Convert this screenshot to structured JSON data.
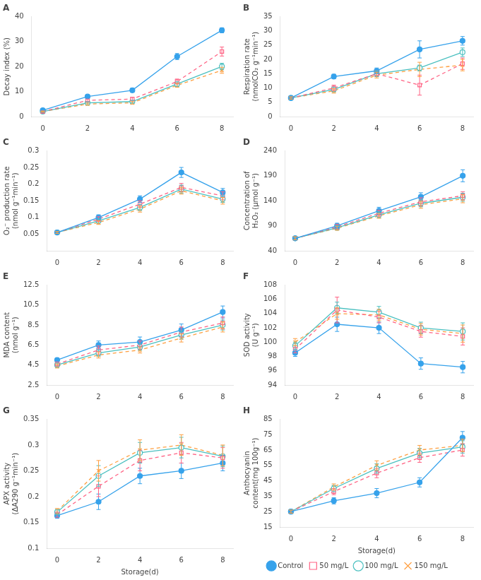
{
  "chart_data": [
    {
      "type": "line",
      "title": "A",
      "ylabel": "Decay index (%)",
      "x": [
        0,
        2,
        4,
        6,
        8
      ],
      "xlim": [
        -0.5,
        8.5
      ],
      "xticks": [
        0,
        2,
        4,
        6,
        8
      ],
      "ylim": [
        0,
        40
      ],
      "yticks": [
        0,
        10,
        20,
        30,
        40
      ],
      "grid": false,
      "series": [
        {
          "name": "Control",
          "values": [
            2.5,
            8.0,
            10.5,
            24.0,
            34.5
          ],
          "errors": [
            0.3,
            0.6,
            0.8,
            1.2,
            1.0
          ],
          "marker": "filled_circle",
          "line_style": "solid"
        },
        {
          "name": "50 mg/L",
          "values": [
            2.0,
            6.5,
            7.0,
            14.0,
            26.0
          ],
          "errors": [
            0.3,
            0.5,
            0.7,
            1.0,
            1.8
          ],
          "marker": "open_square",
          "line_style": "dashed"
        },
        {
          "name": "100 mg/L",
          "values": [
            2.0,
            5.5,
            6.0,
            13.0,
            20.0
          ],
          "errors": [
            0.2,
            0.4,
            0.5,
            0.9,
            1.3
          ],
          "marker": "open_circle",
          "line_style": "solid"
        },
        {
          "name": "150 mg/L",
          "values": [
            2.0,
            5.0,
            5.5,
            12.5,
            18.5
          ],
          "errors": [
            0.2,
            0.4,
            0.5,
            0.8,
            1.2
          ],
          "marker": "cross",
          "line_style": "dashed"
        }
      ]
    },
    {
      "type": "line",
      "title": "B",
      "ylabel": "Respiration rate\n(nmolCO₂ g⁻¹min⁻¹)",
      "x": [
        0,
        2,
        4,
        6,
        8
      ],
      "xlim": [
        -0.5,
        8.5
      ],
      "xticks": [
        0,
        2,
        4,
        6,
        8
      ],
      "ylim": [
        0,
        35
      ],
      "yticks": [
        0,
        5,
        10,
        15,
        20,
        25,
        30,
        35
      ],
      "grid": false,
      "series": [
        {
          "name": "Control",
          "values": [
            6.5,
            14.0,
            16.0,
            23.5,
            26.5
          ],
          "errors": [
            0.4,
            0.8,
            1.0,
            3.0,
            1.5
          ],
          "marker": "filled_circle",
          "line_style": "solid"
        },
        {
          "name": "50 mg/L",
          "values": [
            6.5,
            10.0,
            15.0,
            11.0,
            18.5
          ],
          "errors": [
            0.4,
            1.0,
            1.0,
            3.5,
            2.0
          ],
          "marker": "open_square",
          "line_style": "dashed"
        },
        {
          "name": "100 mg/L",
          "values": [
            6.5,
            9.5,
            15.0,
            17.0,
            22.5
          ],
          "errors": [
            0.4,
            0.8,
            1.0,
            1.0,
            1.5
          ],
          "marker": "open_circle",
          "line_style": "solid"
        },
        {
          "name": "150 mg/L",
          "values": [
            6.5,
            9.0,
            14.5,
            16.5,
            18.0
          ],
          "errors": [
            0.4,
            0.8,
            1.0,
            2.5,
            2.0
          ],
          "marker": "cross",
          "line_style": "dashed"
        }
      ]
    },
    {
      "type": "line",
      "title": "C",
      "ylabel": "O₂⁻ production rate\n(nmol g⁻¹min⁻¹)",
      "x": [
        0,
        2,
        4,
        6,
        8
      ],
      "xlim": [
        -0.5,
        8.5
      ],
      "xticks": [
        0,
        2,
        4,
        6,
        8
      ],
      "ylim": [
        0,
        0.3
      ],
      "yticks": [
        0.05,
        0.1,
        0.15,
        0.2,
        0.25,
        0.3
      ],
      "grid": false,
      "series": [
        {
          "name": "Control",
          "values": [
            0.055,
            0.1,
            0.155,
            0.235,
            0.175
          ],
          "errors": [
            0.003,
            0.008,
            0.01,
            0.015,
            0.012
          ],
          "marker": "filled_circle",
          "line_style": "solid"
        },
        {
          "name": "50 mg/L",
          "values": [
            0.055,
            0.095,
            0.14,
            0.19,
            0.165
          ],
          "errors": [
            0.003,
            0.007,
            0.01,
            0.012,
            0.012
          ],
          "marker": "open_square",
          "line_style": "dashed"
        },
        {
          "name": "100 mg/L",
          "values": [
            0.055,
            0.09,
            0.13,
            0.185,
            0.155
          ],
          "errors": [
            0.003,
            0.006,
            0.009,
            0.012,
            0.01
          ],
          "marker": "open_circle",
          "line_style": "solid"
        },
        {
          "name": "150 mg/L",
          "values": [
            0.055,
            0.085,
            0.125,
            0.18,
            0.15
          ],
          "errors": [
            0.003,
            0.006,
            0.009,
            0.01,
            0.01
          ],
          "marker": "cross",
          "line_style": "dashed"
        }
      ]
    },
    {
      "type": "line",
      "title": "D",
      "ylabel": "Concentration of\nH₂O₂ (μmol g⁻¹)",
      "x": [
        0,
        2,
        4,
        6,
        8
      ],
      "xlim": [
        -0.5,
        8.5
      ],
      "xticks": [
        0,
        2,
        4,
        6,
        8
      ],
      "ylim": [
        40,
        240
      ],
      "yticks": [
        40,
        90,
        140,
        190,
        240
      ],
      "grid": false,
      "series": [
        {
          "name": "Control",
          "values": [
            65,
            90,
            120,
            148,
            190
          ],
          "errors": [
            3,
            5,
            7,
            8,
            12
          ],
          "marker": "filled_circle",
          "line_style": "solid"
        },
        {
          "name": "50 mg/L",
          "values": [
            65,
            88,
            115,
            138,
            150
          ],
          "errors": [
            3,
            5,
            6,
            8,
            8
          ],
          "marker": "open_square",
          "line_style": "dashed"
        },
        {
          "name": "100 mg/L",
          "values": [
            65,
            86,
            112,
            135,
            147
          ],
          "errors": [
            3,
            4,
            6,
            7,
            8
          ],
          "marker": "open_circle",
          "line_style": "solid"
        },
        {
          "name": "150 mg/L",
          "values": [
            65,
            85,
            110,
            132,
            144
          ],
          "errors": [
            3,
            4,
            5,
            7,
            8
          ],
          "marker": "cross",
          "line_style": "dashed"
        }
      ]
    },
    {
      "type": "line",
      "title": "E",
      "ylabel": "MDA content\n(nmol g⁻¹)",
      "x": [
        0,
        2,
        4,
        6,
        8
      ],
      "xlim": [
        -0.5,
        8.5
      ],
      "xticks": [
        0,
        2,
        4,
        6,
        8
      ],
      "ylim": [
        2.5,
        12.5
      ],
      "yticks": [
        2.5,
        4.5,
        6.5,
        8.5,
        10.5,
        12.5
      ],
      "grid": false,
      "series": [
        {
          "name": "Control",
          "values": [
            5.0,
            6.5,
            6.8,
            8.0,
            9.8
          ],
          "errors": [
            0.2,
            0.4,
            0.5,
            0.6,
            0.6
          ],
          "marker": "filled_circle",
          "line_style": "solid"
        },
        {
          "name": "50 mg/L",
          "values": [
            4.6,
            6.0,
            6.5,
            7.8,
            8.7
          ],
          "errors": [
            0.2,
            0.4,
            0.4,
            0.5,
            0.6
          ],
          "marker": "open_square",
          "line_style": "dashed"
        },
        {
          "name": "100 mg/L",
          "values": [
            4.5,
            5.7,
            6.3,
            7.5,
            8.5
          ],
          "errors": [
            0.2,
            0.3,
            0.3,
            0.4,
            0.5
          ],
          "marker": "open_circle",
          "line_style": "solid"
        },
        {
          "name": "150 mg/L",
          "values": [
            4.4,
            5.5,
            6.0,
            7.2,
            8.3
          ],
          "errors": [
            0.2,
            0.3,
            0.3,
            0.4,
            0.5
          ],
          "marker": "cross",
          "line_style": "dashed"
        }
      ]
    },
    {
      "type": "line",
      "title": "F",
      "ylabel": "SOD activity\n(U g⁻¹)",
      "x": [
        0,
        2,
        4,
        6,
        8
      ],
      "xlim": [
        -0.5,
        8.5
      ],
      "xticks": [
        0,
        2,
        4,
        6,
        8
      ],
      "ylim": [
        94,
        108
      ],
      "yticks": [
        94,
        96,
        98,
        100,
        102,
        104,
        106,
        108
      ],
      "grid": false,
      "series": [
        {
          "name": "Control",
          "values": [
            98.5,
            102.5,
            102.0,
            97.0,
            96.5
          ],
          "errors": [
            0.5,
            1.0,
            0.8,
            0.8,
            0.8
          ],
          "marker": "filled_circle",
          "line_style": "solid"
        },
        {
          "name": "50 mg/L",
          "values": [
            99.0,
            104.5,
            103.5,
            101.5,
            100.8
          ],
          "errors": [
            0.5,
            1.8,
            0.8,
            0.8,
            1.2
          ],
          "marker": "open_square",
          "line_style": "dashed"
        },
        {
          "name": "100 mg/L",
          "values": [
            99.5,
            104.8,
            104.2,
            102.0,
            101.5
          ],
          "errors": [
            0.5,
            0.8,
            0.8,
            0.8,
            1.2
          ],
          "marker": "open_circle",
          "line_style": "solid"
        },
        {
          "name": "150 mg/L",
          "values": [
            100.0,
            104.0,
            103.8,
            101.8,
            101.2
          ],
          "errors": [
            0.5,
            0.8,
            0.8,
            0.8,
            1.2
          ],
          "marker": "cross",
          "line_style": "dashed"
        }
      ]
    },
    {
      "type": "line",
      "title": "G",
      "ylabel": "APX activity\n(ΔA290 g⁻¹min⁻¹)",
      "xlabel": "Storage(d)",
      "x": [
        0,
        2,
        4,
        6,
        8
      ],
      "xlim": [
        -0.5,
        8.5
      ],
      "xticks": [
        0,
        2,
        4,
        6,
        8
      ],
      "ylim": [
        0.1,
        0.35
      ],
      "yticks": [
        0.1,
        0.15,
        0.2,
        0.25,
        0.3,
        0.35
      ],
      "grid": false,
      "series": [
        {
          "name": "Control",
          "values": [
            0.163,
            0.19,
            0.24,
            0.25,
            0.265
          ],
          "errors": [
            0.005,
            0.015,
            0.015,
            0.015,
            0.015
          ],
          "marker": "filled_circle",
          "line_style": "solid"
        },
        {
          "name": "50 mg/L",
          "values": [
            0.165,
            0.22,
            0.27,
            0.285,
            0.275
          ],
          "errors": [
            0.005,
            0.02,
            0.02,
            0.02,
            0.02
          ],
          "marker": "open_square",
          "line_style": "dashed"
        },
        {
          "name": "100 mg/L",
          "values": [
            0.17,
            0.24,
            0.285,
            0.295,
            0.278
          ],
          "errors": [
            0.005,
            0.02,
            0.02,
            0.02,
            0.02
          ],
          "marker": "open_circle",
          "line_style": "solid"
        },
        {
          "name": "150 mg/L",
          "values": [
            0.172,
            0.25,
            0.29,
            0.3,
            0.28
          ],
          "errors": [
            0.005,
            0.02,
            0.02,
            0.02,
            0.02
          ],
          "marker": "cross",
          "line_style": "dashed"
        }
      ]
    },
    {
      "type": "line",
      "title": "H",
      "ylabel": "Anthocyanin\ncontent(mg 100g⁻¹)",
      "xlabel": "Storage(d)",
      "x": [
        0,
        2,
        4,
        6,
        8
      ],
      "xlim": [
        -0.5,
        8.5
      ],
      "xticks": [
        0,
        2,
        4,
        6,
        8
      ],
      "ylim": [
        15,
        85
      ],
      "yticks": [
        15,
        25,
        35,
        45,
        55,
        65,
        75,
        85
      ],
      "grid": false,
      "legend": "bottom",
      "series": [
        {
          "name": "Control",
          "values": [
            25,
            32,
            37,
            44,
            73
          ],
          "errors": [
            1,
            2,
            3,
            3,
            4
          ],
          "marker": "filled_circle",
          "line_style": "solid"
        },
        {
          "name": "50 mg/L",
          "values": [
            25,
            38,
            50,
            60,
            65
          ],
          "errors": [
            1,
            2,
            3,
            3,
            4
          ],
          "marker": "open_square",
          "line_style": "dashed"
        },
        {
          "name": "100 mg/L",
          "values": [
            25,
            40,
            53,
            63,
            67
          ],
          "errors": [
            1,
            2,
            3,
            3,
            4
          ],
          "marker": "open_circle",
          "line_style": "solid"
        },
        {
          "name": "150 mg/L",
          "values": [
            25,
            41,
            55,
            65,
            68
          ],
          "errors": [
            1,
            2,
            3,
            3,
            4
          ],
          "marker": "cross",
          "line_style": "dashed"
        }
      ]
    }
  ]
}
